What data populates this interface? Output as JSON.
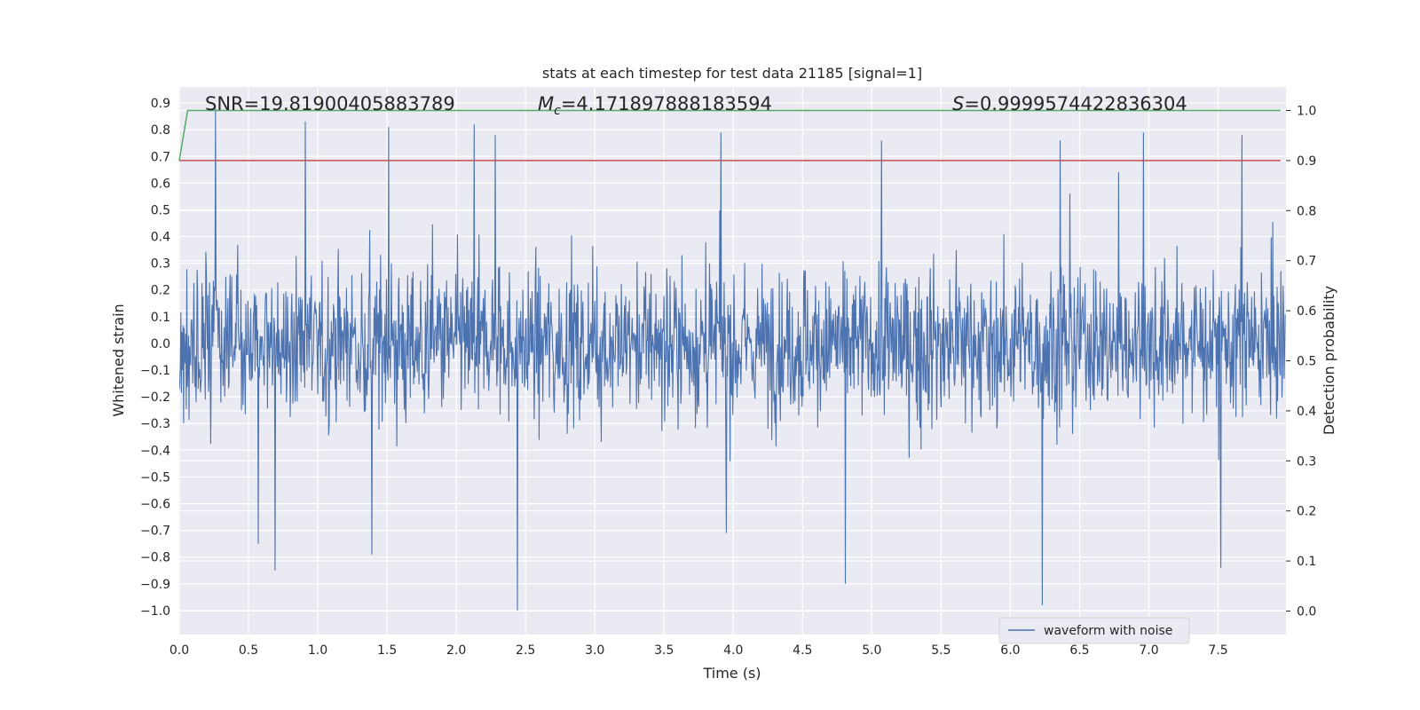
{
  "chart_data": {
    "type": "line",
    "title": "stats at each timestep for test data 21185 [signal=1]",
    "xlabel": "Time (s)",
    "ylabel": "Whitened strain",
    "y2label": "Detection probability",
    "xlim": [
      0.0,
      7.99
    ],
    "ylim": [
      -1.09,
      0.96
    ],
    "y2lim": [
      -0.047,
      1.047
    ],
    "xticks": [
      "0.0",
      "0.5",
      "1.0",
      "1.5",
      "2.0",
      "2.5",
      "3.0",
      "3.5",
      "4.0",
      "4.5",
      "5.0",
      "5.5",
      "6.0",
      "6.5",
      "7.0",
      "7.5"
    ],
    "yticks": [
      "0.9",
      "0.8",
      "0.7",
      "0.6",
      "0.5",
      "0.4",
      "0.3",
      "0.2",
      "0.1",
      "0.0",
      "−0.1",
      "−0.2",
      "−0.3",
      "−0.4",
      "−0.5",
      "−0.6",
      "−0.7",
      "−0.8",
      "−0.9",
      "−1.0"
    ],
    "y2ticks": [
      "1.0",
      "0.9",
      "0.8",
      "0.7",
      "0.6",
      "0.5",
      "0.4",
      "0.3",
      "0.2",
      "0.1",
      "0.0"
    ],
    "annotations": {
      "snr": "SNR=19.81900405883789",
      "mc": "=4.171897888183594",
      "mc_symbol": "M",
      "mc_sub": "c",
      "s": "=0.9999574422836304",
      "s_symbol": "S"
    },
    "legend": {
      "label": "waveform with noise",
      "position": "lower-right"
    },
    "series": [
      {
        "name": "waveform with noise",
        "axis": "left",
        "color": "#4c72b0",
        "kind": "noise",
        "sample_rate": 256,
        "duration": 7.99,
        "core_amplitude": 0.3,
        "extremes": [
          {
            "t": 0.26,
            "v": 0.88
          },
          {
            "t": 0.91,
            "v": 0.83
          },
          {
            "t": 1.51,
            "v": 0.81
          },
          {
            "t": 2.13,
            "v": 0.82
          },
          {
            "t": 2.28,
            "v": 0.78
          },
          {
            "t": 3.91,
            "v": 0.79
          },
          {
            "t": 5.07,
            "v": 0.76
          },
          {
            "t": 6.36,
            "v": 0.76
          },
          {
            "t": 6.96,
            "v": 0.79
          },
          {
            "t": 7.67,
            "v": 0.78
          },
          {
            "t": 0.69,
            "v": -0.85
          },
          {
            "t": 2.44,
            "v": -1.0
          },
          {
            "t": 4.81,
            "v": -0.9
          },
          {
            "t": 6.23,
            "v": -0.98
          },
          {
            "t": 1.39,
            "v": -0.79
          },
          {
            "t": 0.57,
            "v": -0.75
          },
          {
            "t": 3.95,
            "v": -0.71
          },
          {
            "t": 7.52,
            "v": -0.84
          }
        ]
      },
      {
        "name": "detection probability",
        "axis": "right",
        "color": "#55a868",
        "x": [
          0.0,
          0.06,
          7.95
        ],
        "y": [
          0.9,
          1.0,
          1.0
        ]
      },
      {
        "name": "threshold",
        "axis": "right",
        "color": "#c44e52",
        "x": [
          0.0,
          7.95
        ],
        "y": [
          0.9,
          0.9
        ]
      }
    ]
  }
}
